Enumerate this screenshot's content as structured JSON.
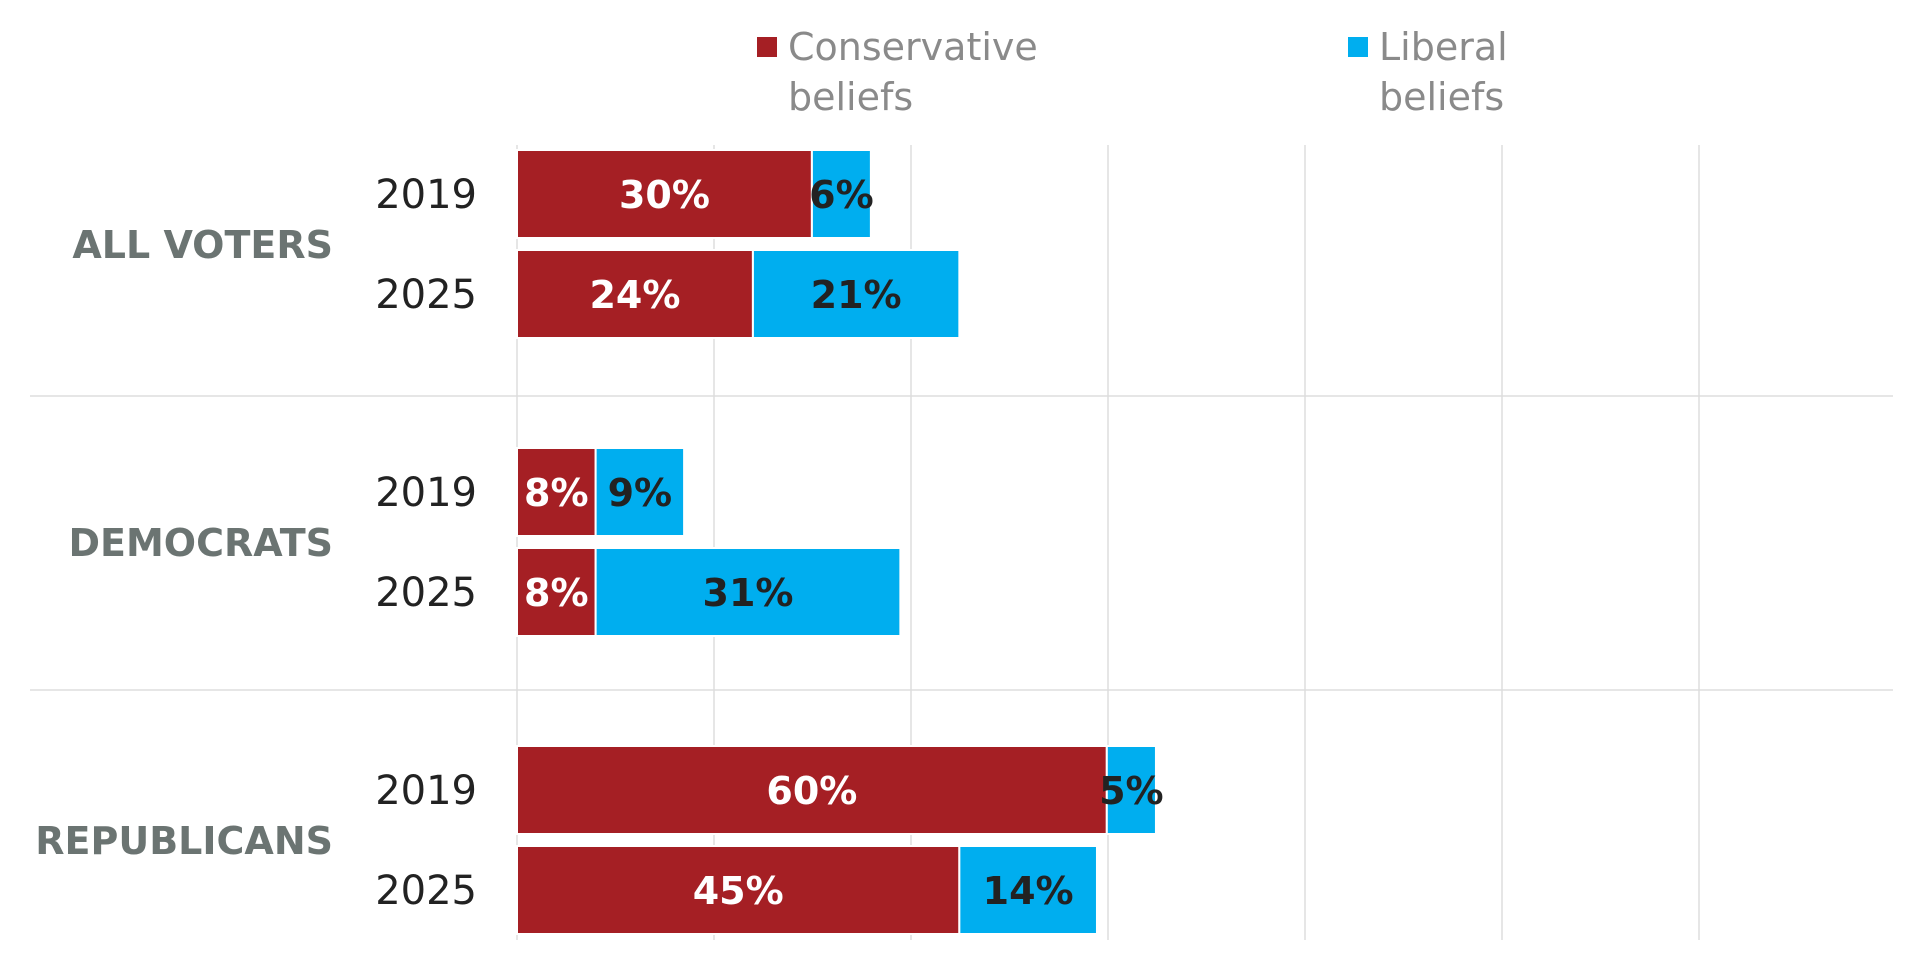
{
  "chart_data": {
    "type": "bar",
    "orientation": "horizontal",
    "stacked": true,
    "legend_position": "top",
    "grid": true,
    "xlim": [
      0,
      70
    ],
    "groups": [
      "ALL VOTERS",
      "DEMOCRATS",
      "REPUBLICANS"
    ],
    "categories": [
      "2019",
      "2025"
    ],
    "series": [
      {
        "name": "Conservative beliefs",
        "color": "#a51f24",
        "label_color": "#ffffff",
        "values": [
          [
            30,
            24
          ],
          [
            8,
            8
          ],
          [
            60,
            45
          ]
        ],
        "labels": [
          [
            "30%",
            "24%"
          ],
          [
            "8%",
            "8%"
          ],
          [
            "60%",
            "45%"
          ]
        ]
      },
      {
        "name": "Liberal beliefs",
        "color": "#00aeef",
        "label_color": "#222222",
        "values": [
          [
            6,
            21
          ],
          [
            9,
            31
          ],
          [
            5,
            14
          ]
        ],
        "labels": [
          [
            "6%",
            "21%"
          ],
          [
            "9%",
            "31%"
          ],
          [
            "5%",
            "14%"
          ]
        ]
      }
    ]
  },
  "legend": {
    "conservative": "Conservative\nbeliefs",
    "liberal": "Liberal\nbeliefs"
  }
}
